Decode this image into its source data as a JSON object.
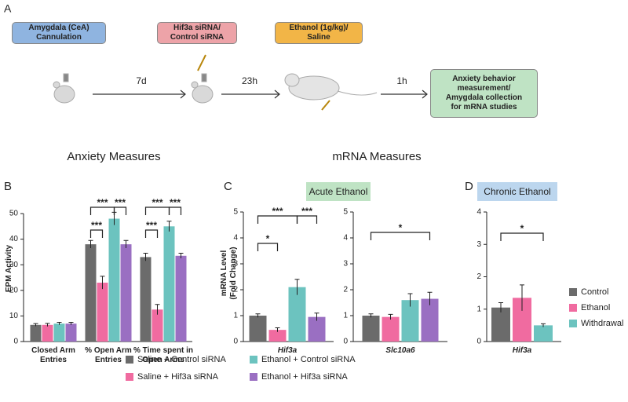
{
  "panel_labels": [
    "A",
    "B",
    "C",
    "D"
  ],
  "schematic": {
    "steps": [
      "Amygdala (CeA)\nCannulation",
      "Hif3a siRNA/\nControl siRNA",
      "Ethanol (1g/kg)/\nSaline"
    ],
    "intervals": [
      "7d",
      "23h",
      "1h"
    ],
    "outcome": "Anxiety behavior\nmeasurement/\nAmygdala collection\nfor mRNA studies"
  },
  "section_titles": [
    "Anxiety Measures",
    "mRNA Measures"
  ],
  "panel_headers": [
    "Acute Ethanol",
    "Chronic Ethanol"
  ],
  "chart_data": [
    {
      "type": "bar",
      "ylabel": "EPM Activity",
      "categories": [
        "Closed Arm\nEntries",
        "% Open Arm\nEntries",
        "% Time spent in\nOpen Arms"
      ],
      "series": [
        {
          "name": "Saline + Control siRNA",
          "color": "#6b6b6b",
          "values": [
            6.5,
            38,
            33
          ],
          "errors": [
            0.5,
            1.5,
            1.5
          ]
        },
        {
          "name": "Saline + Hif3a siRNA",
          "color": "#f06ba0",
          "values": [
            6.5,
            23,
            12.5
          ],
          "errors": [
            0.6,
            2.5,
            2
          ]
        },
        {
          "name": "Ethanol + Control siRNA",
          "color": "#6cc3bf",
          "values": [
            7,
            48,
            45
          ],
          "errors": [
            0.5,
            2.5,
            2
          ]
        },
        {
          "name": "Ethanol + Hif3a siRNA",
          "color": "#9a6fc2",
          "values": [
            7,
            38,
            33.5
          ],
          "errors": [
            0.5,
            1.5,
            1
          ]
        }
      ],
      "ylim": [
        0,
        50
      ],
      "yticks": [
        0,
        10,
        20,
        30,
        40,
        50
      ],
      "annotations": [
        "***",
        "***",
        "***",
        "***",
        "***",
        "***"
      ],
      "legend": "bottom"
    },
    {
      "type": "bar",
      "ylabel": "mRNA Level\n(Fold Change)",
      "categories": [
        "Hif3a"
      ],
      "series": [
        {
          "name": "Saline + Control siRNA",
          "color": "#6b6b6b",
          "values": [
            1.0
          ],
          "errors": [
            0.07
          ]
        },
        {
          "name": "Saline + Hif3a siRNA",
          "color": "#f06ba0",
          "values": [
            0.45
          ],
          "errors": [
            0.08
          ]
        },
        {
          "name": "Ethanol + Control siRNA",
          "color": "#6cc3bf",
          "values": [
            2.1
          ],
          "errors": [
            0.3
          ]
        },
        {
          "name": "Ethanol + Hif3a siRNA",
          "color": "#9a6fc2",
          "values": [
            0.95
          ],
          "errors": [
            0.15
          ]
        }
      ],
      "ylim": [
        0,
        5
      ],
      "yticks": [
        0,
        1,
        2,
        3,
        4,
        5
      ],
      "annotations": [
        "*",
        "***",
        "***"
      ]
    },
    {
      "type": "bar",
      "categories": [
        "Slc10a6"
      ],
      "series": [
        {
          "name": "Saline + Control siRNA",
          "color": "#6b6b6b",
          "values": [
            1.0
          ],
          "errors": [
            0.07
          ]
        },
        {
          "name": "Saline + Hif3a siRNA",
          "color": "#f06ba0",
          "values": [
            0.95
          ],
          "errors": [
            0.1
          ]
        },
        {
          "name": "Ethanol + Control siRNA",
          "color": "#6cc3bf",
          "values": [
            1.6
          ],
          "errors": [
            0.25
          ]
        },
        {
          "name": "Ethanol + Hif3a siRNA",
          "color": "#9a6fc2",
          "values": [
            1.65
          ],
          "errors": [
            0.25
          ]
        }
      ],
      "ylim": [
        0,
        5
      ],
      "yticks": [
        0,
        1,
        2,
        3,
        4,
        5
      ],
      "annotations": [
        "*"
      ]
    },
    {
      "type": "bar",
      "categories": [
        "Hif3a"
      ],
      "series": [
        {
          "name": "Control",
          "color": "#6b6b6b",
          "values": [
            1.05
          ],
          "errors": [
            0.15
          ]
        },
        {
          "name": "Ethanol",
          "color": "#f06ba0",
          "values": [
            1.35
          ],
          "errors": [
            0.4
          ]
        },
        {
          "name": "Withdrawal",
          "color": "#6cc3bf",
          "values": [
            0.5
          ],
          "errors": [
            0.05
          ]
        }
      ],
      "ylim": [
        0,
        4
      ],
      "yticks": [
        0,
        1,
        2,
        3,
        4
      ],
      "annotations": [
        "*"
      ],
      "legend": "right"
    }
  ]
}
